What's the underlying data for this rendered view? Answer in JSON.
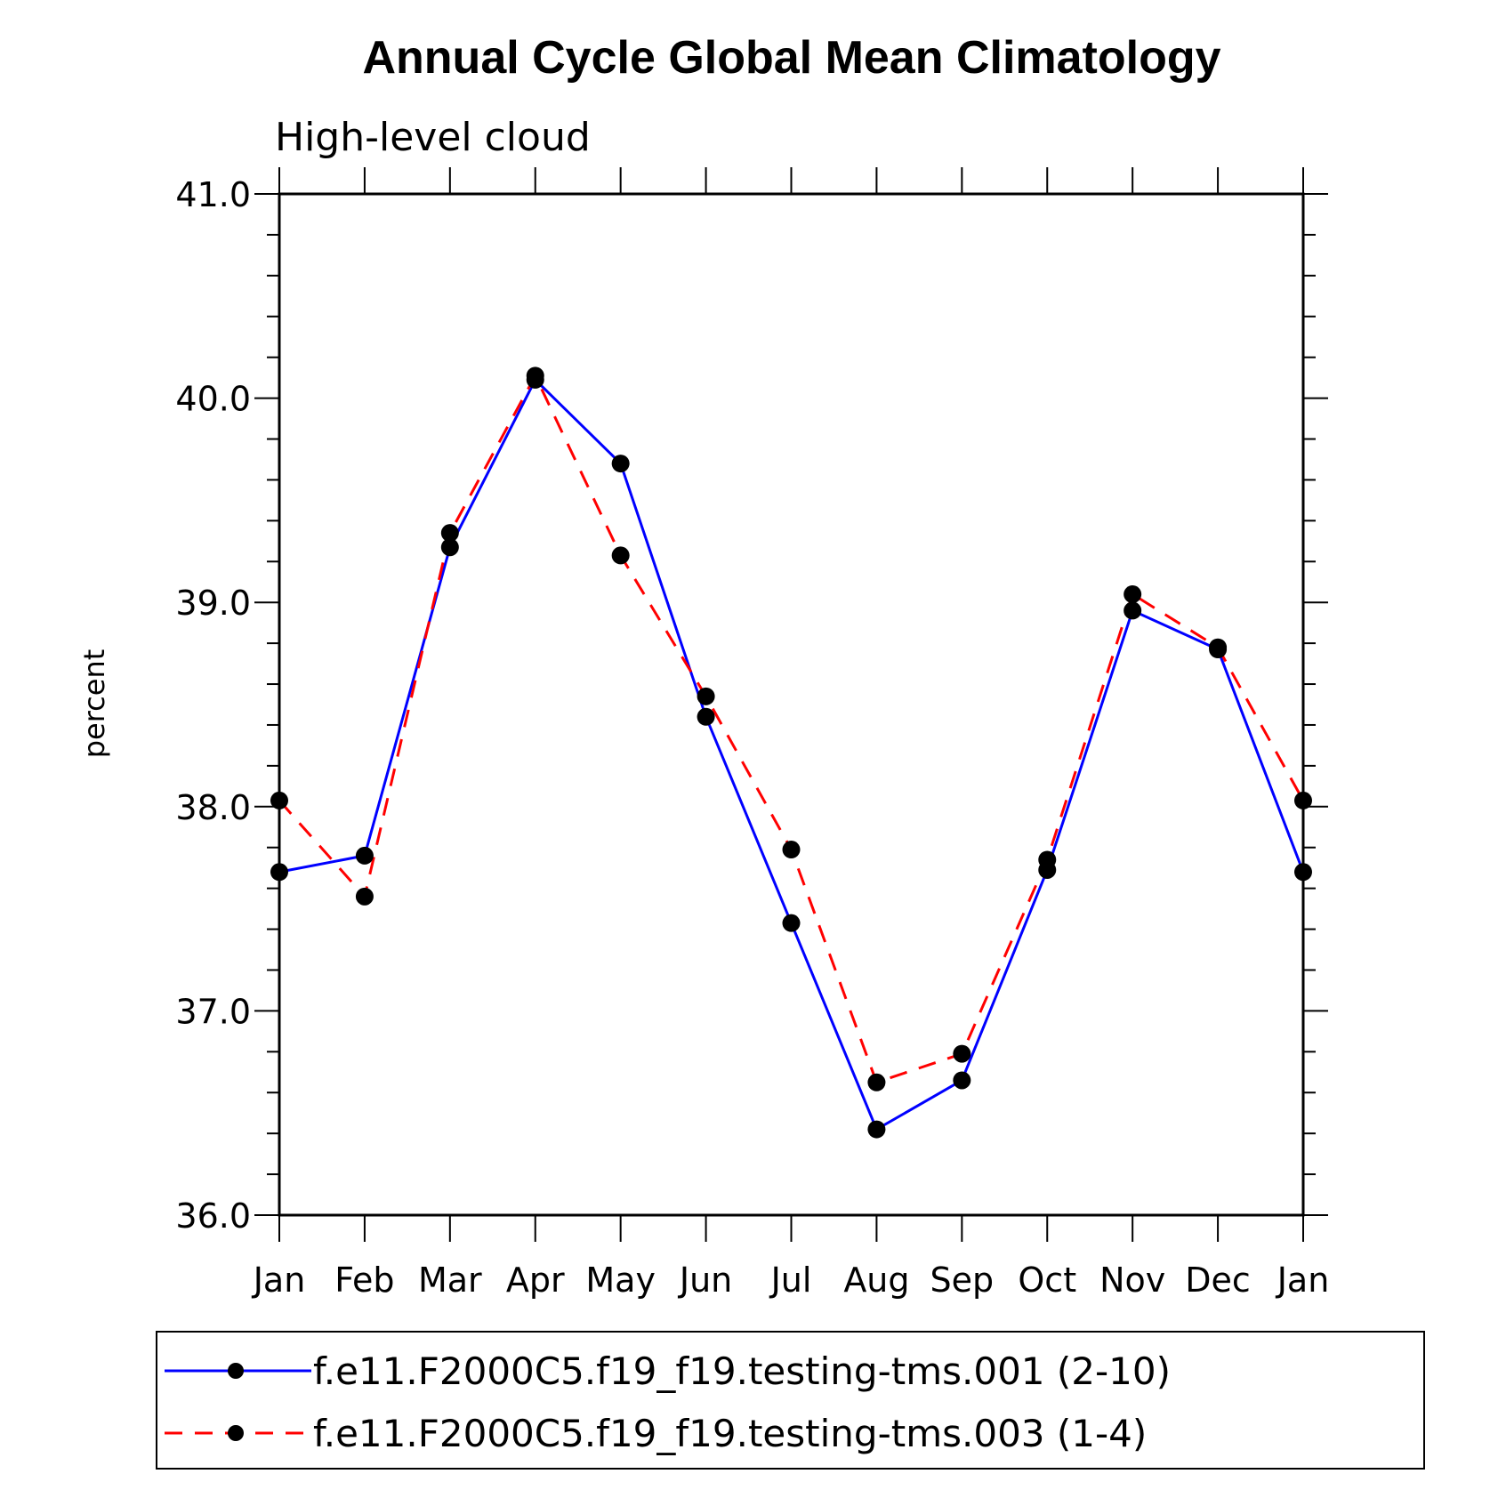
{
  "chart_data": {
    "type": "line",
    "title": "Annual Cycle Global Mean Climatology",
    "subtitle": "High-level cloud",
    "xlabel": "",
    "ylabel": "percent",
    "categories": [
      "Jan",
      "Feb",
      "Mar",
      "Apr",
      "May",
      "Jun",
      "Jul",
      "Aug",
      "Sep",
      "Oct",
      "Nov",
      "Dec",
      "Jan"
    ],
    "ylim": [
      36.0,
      41.0
    ],
    "yticks": [
      "36.0",
      "37.0",
      "38.0",
      "39.0",
      "40.0",
      "41.0"
    ],
    "grid": false,
    "legend_position": "bottom",
    "series": [
      {
        "name": "f.e11.F2000C5.f19_f19.testing-tms.001 (2-10)",
        "color": "#0000ff",
        "line_style": "solid",
        "marker": "filled-circle",
        "values": [
          37.68,
          37.76,
          39.27,
          40.09,
          39.68,
          38.44,
          37.43,
          36.42,
          36.66,
          37.69,
          38.96,
          38.77,
          37.68
        ]
      },
      {
        "name": "f.e11.F2000C5.f19_f19.testing-tms.003 (1-4)",
        "color": "#ff0000",
        "line_style": "dashed",
        "marker": "filled-circle",
        "values": [
          38.03,
          37.56,
          39.34,
          40.11,
          39.23,
          38.54,
          37.79,
          36.65,
          36.79,
          37.74,
          39.04,
          38.78,
          38.03
        ]
      }
    ]
  }
}
